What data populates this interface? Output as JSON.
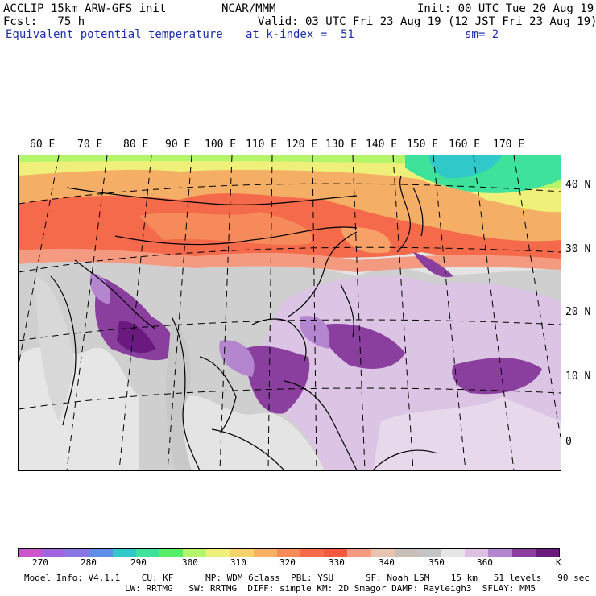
{
  "header": {
    "line1_left": "ACCLIP 15km ARW-GFS init",
    "line1_center": "NCAR/MMM",
    "line1_right": "Init: 00 UTC Tue 20 Aug 19",
    "line2_left": "Fcst:   75 h",
    "line2_right": "Valid: 03 UTC Fri 23 Aug 19 (12 JST Fri 23 Aug 19)",
    "line3_left": "Equivalent potential temperature",
    "line3_center": "at k-index =  51",
    "line3_right": "sm= 2"
  },
  "map": {
    "lon_labels": [
      "60 E",
      "70 E",
      "80 E",
      "90 E",
      "100 E",
      "110 E",
      "120 E",
      "130 E",
      "140 E",
      "150 E",
      "160 E",
      "170 E"
    ],
    "lat_labels": [
      "40 N",
      "30 N",
      "20 N",
      "10 N",
      "0"
    ]
  },
  "colorbar": {
    "colors": [
      "#cc55cc",
      "#a066dd",
      "#8877e0",
      "#5f8ee8",
      "#30c8c8",
      "#3ee29a",
      "#55ee66",
      "#b4f56a",
      "#eef07a",
      "#f5d36a",
      "#f7b064",
      "#f58a5a",
      "#f46a4a",
      "#f3593f",
      "#f49a80",
      "#e8c3b0",
      "#c8c0b8",
      "#c4c4c4",
      "#e6e6e6",
      "#dcbfe2",
      "#b586d0",
      "#8a3f9e",
      "#6a1a7e"
    ],
    "ticks": [
      "270",
      "280",
      "290",
      "300",
      "310",
      "320",
      "330",
      "340",
      "350",
      "360"
    ],
    "unit": "K"
  },
  "footer": {
    "line1": "Model Info: V4.1.1    CU: KF      MP: WDM 6class  PBL: YSU      SF: Noah LSM    15 km   51 levels   90 sec",
    "line2": "LW: RRTMG   SW: RRTMG  DIFF: simple KM: 2D Smagor DAMP: Rayleigh3  SFLAY: MM5"
  }
}
